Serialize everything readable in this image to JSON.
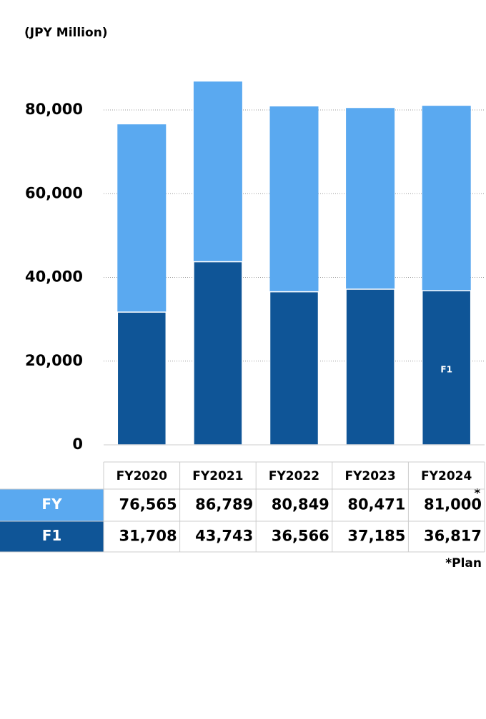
{
  "chart_data": {
    "type": "bar",
    "subtitle": "(JPY Million)",
    "categories": [
      "FY2020",
      "FY2021",
      "FY2022",
      "FY2023",
      "FY2024"
    ],
    "series": [
      {
        "name": "FY",
        "color": "#5aa9f0",
        "values": [
          76565,
          86789,
          80849,
          80471,
          81000
        ],
        "value_labels": [
          "76,565",
          "86,789",
          "80,849",
          "80,471",
          "81,000"
        ]
      },
      {
        "name": "F1",
        "color": "#0f5597",
        "values": [
          31708,
          43743,
          36566,
          37185,
          36817
        ],
        "value_labels": [
          "31,708",
          "43,743",
          "36,566",
          "37,185",
          "36,817"
        ]
      }
    ],
    "ylim": [
      0,
      90000
    ],
    "yticks": [
      0,
      {
        "value": 20000,
        "label": "20,000"
      },
      {
        "value": 40000,
        "label": "40,000"
      },
      {
        "value": 60000,
        "label": "60,000"
      },
      {
        "value": 80000,
        "label": "80,000"
      }
    ],
    "grid": true,
    "plan_marker": "*",
    "note": "*Plan"
  }
}
